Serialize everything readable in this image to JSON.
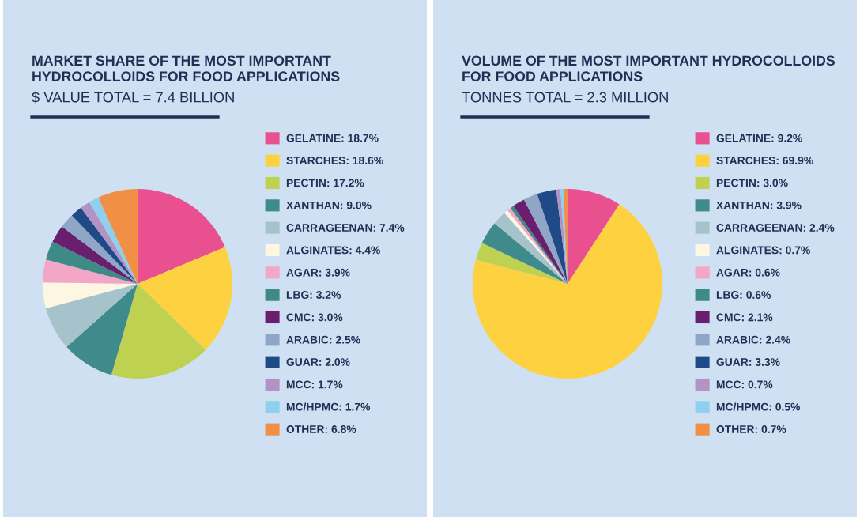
{
  "chart_data": [
    {
      "type": "pie",
      "title": "MARKET SHARE OF THE MOST IMPORTANT\nHYDROCOLLOIDS FOR FOOD APPLICATIONS",
      "subtitle": "$ VALUE TOTAL = 7.4 BILLION",
      "legend": "right",
      "categories": [
        "GELATINE: 18.7%",
        "STARCHES: 18.6%",
        "PECTIN: 17.2%",
        "XANTHAN: 9.0%",
        "CARRAGEENAN: 7.4%",
        "ALGINATES: 4.4%",
        "AGAR: 3.9%",
        "LBG: 3.2%",
        "CMC: 3.0%",
        "ARABIC: 2.5%",
        "GUAR: 2.0%",
        "MCC: 1.7%",
        "MC/HPMC: 1.7%",
        "OTHER: 6.8%"
      ],
      "values": [
        18.7,
        18.6,
        17.2,
        9.0,
        7.4,
        4.4,
        3.9,
        3.2,
        3.0,
        2.5,
        2.0,
        1.7,
        1.7,
        6.8
      ],
      "colors": [
        "#e8508f",
        "#fdd13f",
        "#bfd151",
        "#3f8a8a",
        "#a6c3cb",
        "#fdf6e0",
        "#f4a6c8",
        "#3d8a86",
        "#6a1f6e",
        "#8fa6c6",
        "#1f4a85",
        "#b393c4",
        "#8fd0ee",
        "#f08f45"
      ]
    },
    {
      "type": "pie",
      "title": "VOLUME OF THE MOST IMPORTANT HYDROCOLLOIDS\nFOR FOOD APPLICATIONS",
      "subtitle": "TONNES TOTAL = 2.3 MILLION",
      "legend": "right",
      "categories": [
        "GELATINE: 9.2%",
        "STARCHES: 69.9%",
        "PECTIN: 3.0%",
        "XANTHAN: 3.9%",
        "CARRAGEENAN: 2.4%",
        "ALGINATES: 0.7%",
        "AGAR: 0.6%",
        "LBG: 0.6%",
        "CMC: 2.1%",
        "ARABIC: 2.4%",
        "GUAR: 3.3%",
        "MCC: 0.7%",
        "MC/HPMC: 0.5%",
        "OTHER: 0.7%"
      ],
      "values": [
        9.2,
        69.9,
        3.0,
        3.9,
        2.4,
        0.7,
        0.6,
        0.6,
        2.1,
        2.4,
        3.3,
        0.7,
        0.5,
        0.7
      ],
      "colors": [
        "#e8508f",
        "#fdd13f",
        "#bfd151",
        "#3f8a8a",
        "#a6c3cb",
        "#fdf6e0",
        "#f4a6c8",
        "#3d8a86",
        "#6a1f6e",
        "#8fa6c6",
        "#1f4a85",
        "#b393c4",
        "#8fd0ee",
        "#f08f45"
      ]
    }
  ]
}
